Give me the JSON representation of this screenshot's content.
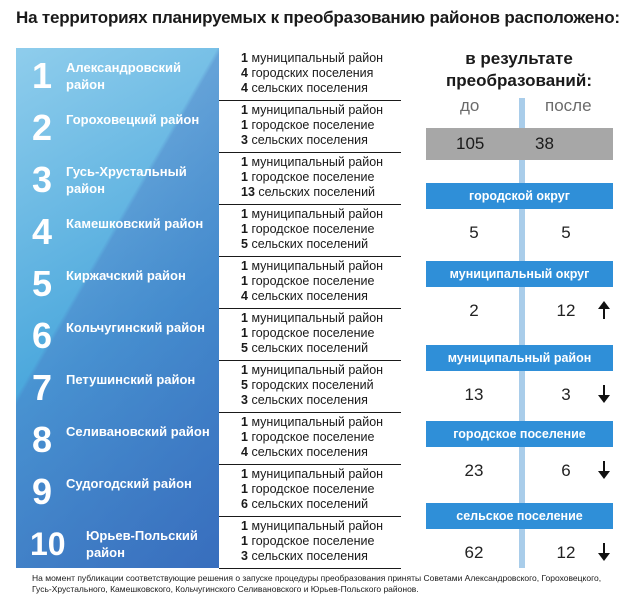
{
  "title": "На территориях планируемых к преобразованию районов расположено:",
  "districts": [
    {
      "num": "1",
      "name": "Александровский район",
      "lines": [
        [
          "1",
          "муниципальный район"
        ],
        [
          "4",
          "городских поселения"
        ],
        [
          "4",
          "сельских поселения"
        ]
      ]
    },
    {
      "num": "2",
      "name": "Гороховецкий район",
      "lines": [
        [
          "1",
          "муниципальный район"
        ],
        [
          "1",
          "городское поселение"
        ],
        [
          "3",
          "сельских поселения"
        ]
      ]
    },
    {
      "num": "3",
      "name": "Гусь-Хрустальный район",
      "lines": [
        [
          "1",
          "муниципальный район"
        ],
        [
          "1",
          "городское поселение"
        ],
        [
          "13",
          "сельских поселений"
        ]
      ]
    },
    {
      "num": "4",
      "name": "Камешковский район",
      "lines": [
        [
          "1",
          "муниципальный район"
        ],
        [
          "1",
          "городское поселение"
        ],
        [
          "5",
          "сельских поселений"
        ]
      ]
    },
    {
      "num": "5",
      "name": "Киржачский район",
      "lines": [
        [
          "1",
          "муниципальный район"
        ],
        [
          "1",
          "городское поселение"
        ],
        [
          "4",
          "сельских поселения"
        ]
      ]
    },
    {
      "num": "6",
      "name": "Кольчугинский район",
      "lines": [
        [
          "1",
          "муниципальный район"
        ],
        [
          "1",
          "городское поселение"
        ],
        [
          "5",
          "сельских поселений"
        ]
      ]
    },
    {
      "num": "7",
      "name": "Петушинский район",
      "lines": [
        [
          "1",
          "муниципальный район"
        ],
        [
          "5",
          "городских поселений"
        ],
        [
          "3",
          "сельских поселения"
        ]
      ]
    },
    {
      "num": "8",
      "name": "Селивановский район",
      "lines": [
        [
          "1",
          "муниципальный район"
        ],
        [
          "1",
          "городское поселение"
        ],
        [
          "4",
          "сельских поселения"
        ]
      ]
    },
    {
      "num": "9",
      "name": "Судогодский район",
      "lines": [
        [
          "1",
          "муниципальный район"
        ],
        [
          "1",
          "городское поселение"
        ],
        [
          "6",
          "сельских поселений"
        ]
      ]
    },
    {
      "num": "10",
      "name": "Юрьев-Польский район",
      "lines": [
        [
          "1",
          "муниципальный район"
        ],
        [
          "1",
          "городское поселение"
        ],
        [
          "3",
          "сельских поселения"
        ]
      ]
    }
  ],
  "results": {
    "title_line1": "в результате",
    "title_line2": "преобразований:",
    "before_label": "до",
    "after_label": "после",
    "total_before": "105",
    "total_after": "38",
    "categories": [
      {
        "label": "городской округ",
        "before": "5",
        "after": "5",
        "trend": "none"
      },
      {
        "label": "муниципальный округ",
        "before": "2",
        "after": "12",
        "trend": "up"
      },
      {
        "label": "муниципальный район",
        "before": "13",
        "after": "3",
        "trend": "down"
      },
      {
        "label": "городское поселение",
        "before": "23",
        "after": "6",
        "trend": "down"
      },
      {
        "label": "сельское поселение",
        "before": "62",
        "after": "12",
        "trend": "down"
      }
    ]
  },
  "footnote": "На момент публикации соответствующие решения о запуске процедуры преобразования приняты Советами Александровского, Гороховецкого, Гусь-Хрустального, Камешковского, Кольчугинского Селивановского и Юрьев-Польского районов.",
  "colors": {
    "accent_blue": "#2f8fd8",
    "panel_blue": "#4aa7dc",
    "line_blue": "#a9cdea",
    "gray_bar": "#a7a7a7"
  }
}
